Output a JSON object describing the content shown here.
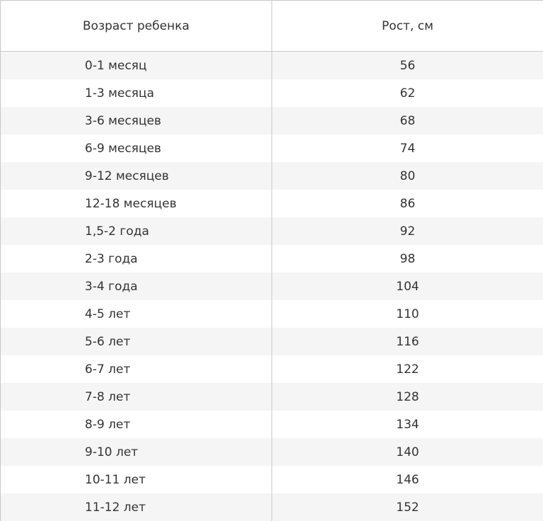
{
  "table": {
    "headers": [
      "Возраст ребенка",
      "Рост, см"
    ],
    "rows": [
      [
        "0-1 месяц",
        "56"
      ],
      [
        "1-3 месяца",
        "62"
      ],
      [
        "3-6 месяцев",
        "68"
      ],
      [
        "6-9 месяцев",
        "74"
      ],
      [
        "9-12 месяцев",
        "80"
      ],
      [
        "12-18 месяцев",
        "86"
      ],
      [
        "1,5-2 года",
        "92"
      ],
      [
        "2-3 года",
        "98"
      ],
      [
        "3-4 года",
        "104"
      ],
      [
        "4-5 лет",
        "110"
      ],
      [
        "5-6 лет",
        "116"
      ],
      [
        "6-7 лет",
        "122"
      ],
      [
        "7-8 лет",
        "128"
      ],
      [
        "8-9 лет",
        "134"
      ],
      [
        "9-10 лет",
        "140"
      ],
      [
        "10-11 лет",
        "146"
      ],
      [
        "11-12 лет",
        "152"
      ]
    ],
    "stripe_color": "#f5f5f5",
    "border_color": "#c8c8c8"
  }
}
